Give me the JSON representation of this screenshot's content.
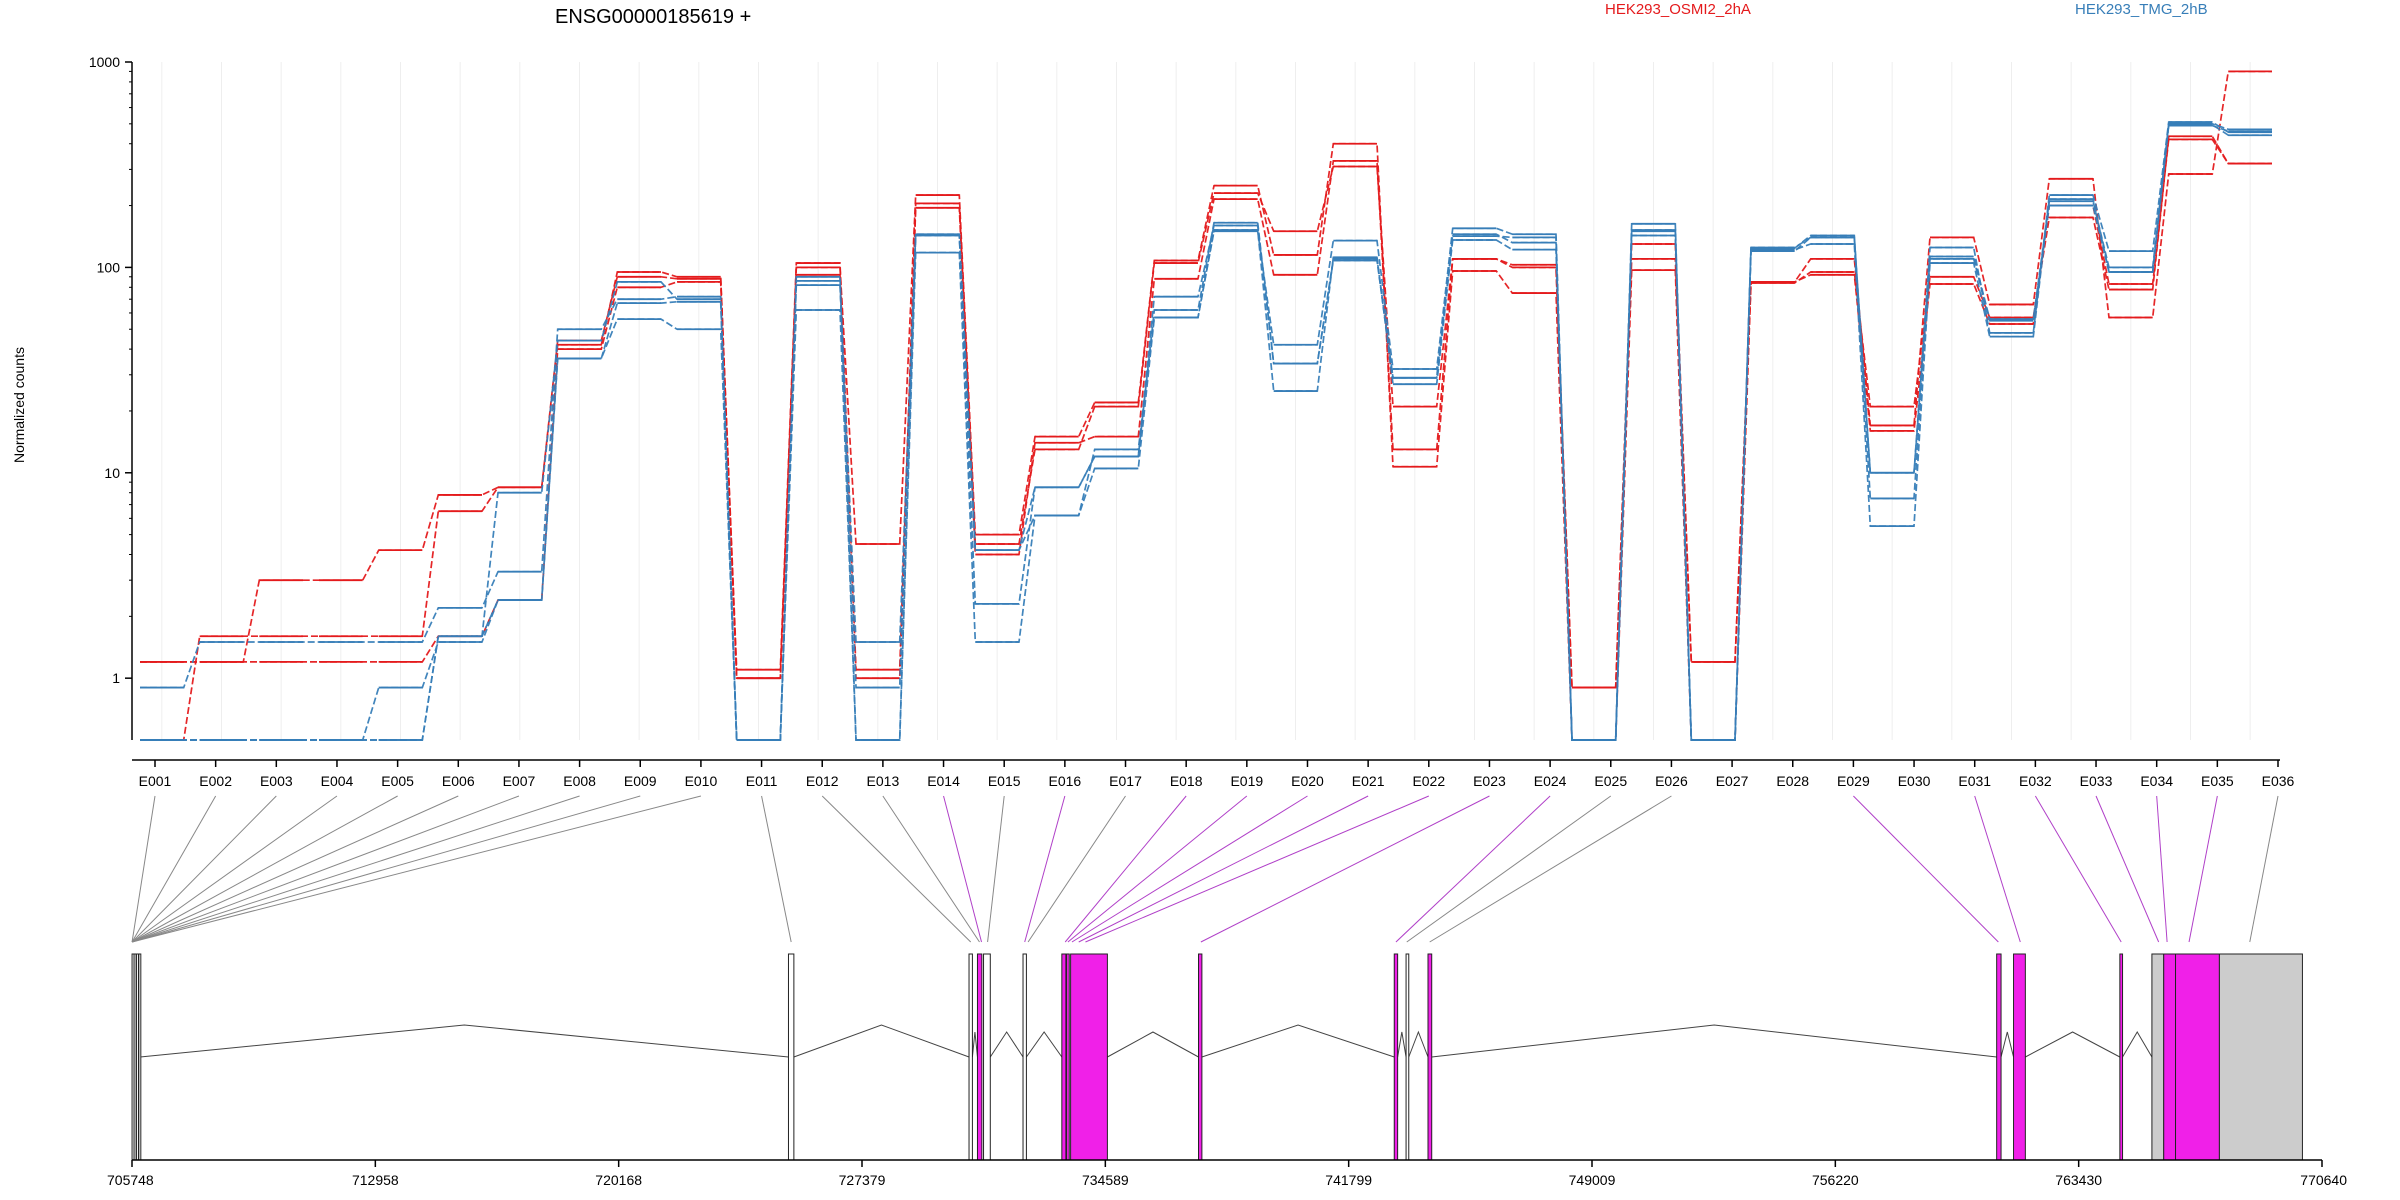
{
  "chart_data": {
    "type": "line",
    "title": "ENSG00000185619 +",
    "ylabel": "Normalized counts",
    "y_scale": "log",
    "ylim": [
      0.5,
      1000
    ],
    "y_ticks": [
      {
        "value": 1,
        "label": "1"
      },
      {
        "value": 10,
        "label": "10"
      },
      {
        "value": 100,
        "label": "100"
      },
      {
        "value": 1000,
        "label": "1000"
      }
    ],
    "grid": "vertical-light",
    "categories": [
      "E001",
      "E002",
      "E003",
      "E004",
      "E005",
      "E006",
      "E007",
      "E008",
      "E009",
      "E010",
      "E011",
      "E012",
      "E013",
      "E014",
      "E015",
      "E016",
      "E017",
      "E018",
      "E019",
      "E020",
      "E021",
      "E022",
      "E023",
      "E024",
      "E025",
      "E026",
      "E027",
      "E028",
      "E029",
      "E030",
      "E031",
      "E032",
      "E033",
      "E034",
      "E035",
      "E036"
    ],
    "legend_position": "top",
    "legend": [
      {
        "label": "HEK293_OSMI2_2hA",
        "color": "#e41a1c"
      },
      {
        "label": "HEK293_TMG_2hB",
        "color": "#377eb8"
      }
    ],
    "series": [
      {
        "color": "#e41a1c",
        "values": [
          1.2,
          1.2,
          1.2,
          1.2,
          1.2,
          1.6,
          2.4,
          40,
          80,
          85,
          1.0,
          92,
          1.0,
          205,
          4.5,
          13,
          21,
          105,
          230,
          150,
          310,
          21,
          110,
          100,
          0.9,
          110,
          1.2,
          85,
          92,
          16,
          83,
          53,
          200,
          83,
          420,
          320
        ]
      },
      {
        "color": "#e41a1c",
        "values": [
          0.5,
          1.6,
          1.6,
          1.6,
          1.6,
          6.5,
          8.5,
          42,
          95,
          90,
          1.0,
          100,
          4.5,
          225,
          5.0,
          15,
          22,
          108,
          250,
          115,
          400,
          10.7,
          96,
          75,
          0.5,
          97,
          0.5,
          85,
          110,
          17,
          140,
          66,
          270,
          57,
          285,
          900
        ]
      },
      {
        "color": "#e41a1c",
        "values": [
          1.2,
          1.2,
          3.0,
          3.0,
          4.2,
          7.8,
          8.5,
          44,
          90,
          88,
          1.1,
          105,
          1.1,
          195,
          4.0,
          14,
          15,
          88,
          215,
          92,
          330,
          13,
          110,
          103,
          0.9,
          130,
          1.2,
          84,
          95,
          21,
          90,
          57,
          175,
          78,
          435,
          320
        ]
      },
      {
        "color": "#377eb8",
        "values": [
          0.9,
          1.5,
          1.5,
          1.5,
          1.5,
          2.2,
          3.3,
          50,
          70,
          72,
          0.5,
          82,
          1.5,
          145,
          4.2,
          6.2,
          13,
          57,
          150,
          42,
          135,
          32,
          155,
          145,
          0.5,
          163,
          0.5,
          125,
          140,
          10,
          125,
          48,
          225,
          120,
          510,
          455
        ]
      },
      {
        "color": "#377eb8",
        "values": [
          0.5,
          0.5,
          0.5,
          0.5,
          0.9,
          1.5,
          2.4,
          36,
          56,
          50,
          0.5,
          62,
          0.5,
          118,
          1.5,
          6.2,
          10.5,
          57,
          152,
          25,
          112,
          27,
          136,
          122,
          0.5,
          143,
          0.5,
          122,
          130,
          5.5,
          105,
          46,
          215,
          95,
          500,
          470
        ]
      },
      {
        "color": "#377eb8",
        "values": [
          0.5,
          0.5,
          0.5,
          0.5,
          0.5,
          1.6,
          2.4,
          36,
          67,
          68,
          0.5,
          86,
          0.9,
          144,
          2.3,
          8.5,
          12,
          62,
          165,
          34,
          108,
          29,
          145,
          132,
          0.5,
          152,
          0.5,
          124,
          143,
          7.5,
          113,
          56,
          210,
          100,
          495,
          440
        ]
      },
      {
        "color": "#377eb8",
        "values": [
          0.5,
          0.5,
          0.5,
          0.5,
          0.5,
          1.6,
          8.0,
          44,
          85,
          70,
          0.5,
          90,
          0.5,
          143,
          4.2,
          8.5,
          12,
          72,
          160,
          34,
          110,
          29,
          142,
          140,
          0.5,
          150,
          0.5,
          120,
          140,
          10,
          110,
          55,
          200,
          95,
          490,
          460
        ]
      }
    ],
    "gene_model": {
      "x_ticks": [
        "705748",
        "712958",
        "720168",
        "727379",
        "734589",
        "741799",
        "749009",
        "756220",
        "763430",
        "770640"
      ],
      "x_range": [
        705748,
        770640
      ],
      "exon_fill_colors": {
        "plain": "#ffffff",
        "highlight": "#f020e8",
        "utr": "#cccccc"
      }
    }
  }
}
